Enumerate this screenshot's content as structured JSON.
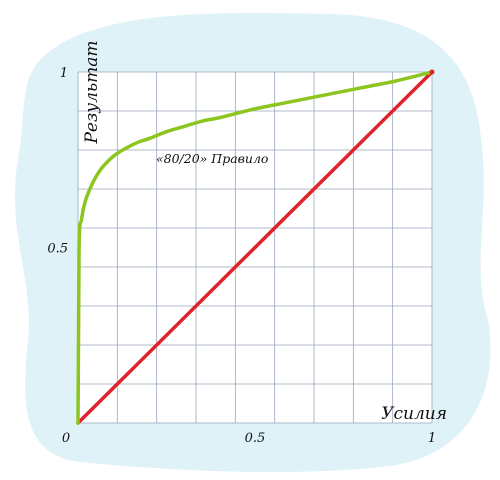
{
  "colors": {
    "background_blob": "#dff2f7",
    "plot_bg": "#ffffff",
    "grid": "#9aa6bd",
    "pareto_curve": "#8cc51e",
    "equality_line": "#e0232b"
  },
  "chart_data": {
    "type": "line",
    "title": "",
    "xlabel": "Усилия",
    "ylabel": "Результат",
    "xlim": [
      0,
      1
    ],
    "ylim": [
      0,
      1
    ],
    "grid": true,
    "x_ticks": [
      {
        "value": 0,
        "label": "0"
      },
      {
        "value": 0.5,
        "label": "0.5"
      },
      {
        "value": 1,
        "label": "1"
      }
    ],
    "y_ticks": [
      {
        "value": 0.5,
        "label": "0.5"
      },
      {
        "value": 1,
        "label": "1"
      }
    ],
    "series": [
      {
        "name": "",
        "color": "#8cc51e",
        "x": [
          0,
          0.003,
          0.01,
          0.02,
          0.035,
          0.05,
          0.07,
          0.1,
          0.13,
          0.17,
          0.2,
          0.25,
          0.3,
          0.35,
          0.4,
          0.5,
          0.6,
          0.7,
          0.8,
          0.9,
          1.0
        ],
        "y": [
          0,
          0.5,
          0.58,
          0.63,
          0.67,
          0.7,
          0.73,
          0.76,
          0.78,
          0.8,
          0.81,
          0.83,
          0.845,
          0.86,
          0.87,
          0.895,
          0.915,
          0.935,
          0.955,
          0.975,
          1.0
        ]
      },
      {
        "name": "",
        "color": "#e0232b",
        "x": [
          0,
          1
        ],
        "y": [
          0,
          1
        ]
      }
    ],
    "annotations": [
      {
        "text": "«80/20» Правило",
        "x": 0.22,
        "y": 0.8
      }
    ]
  }
}
